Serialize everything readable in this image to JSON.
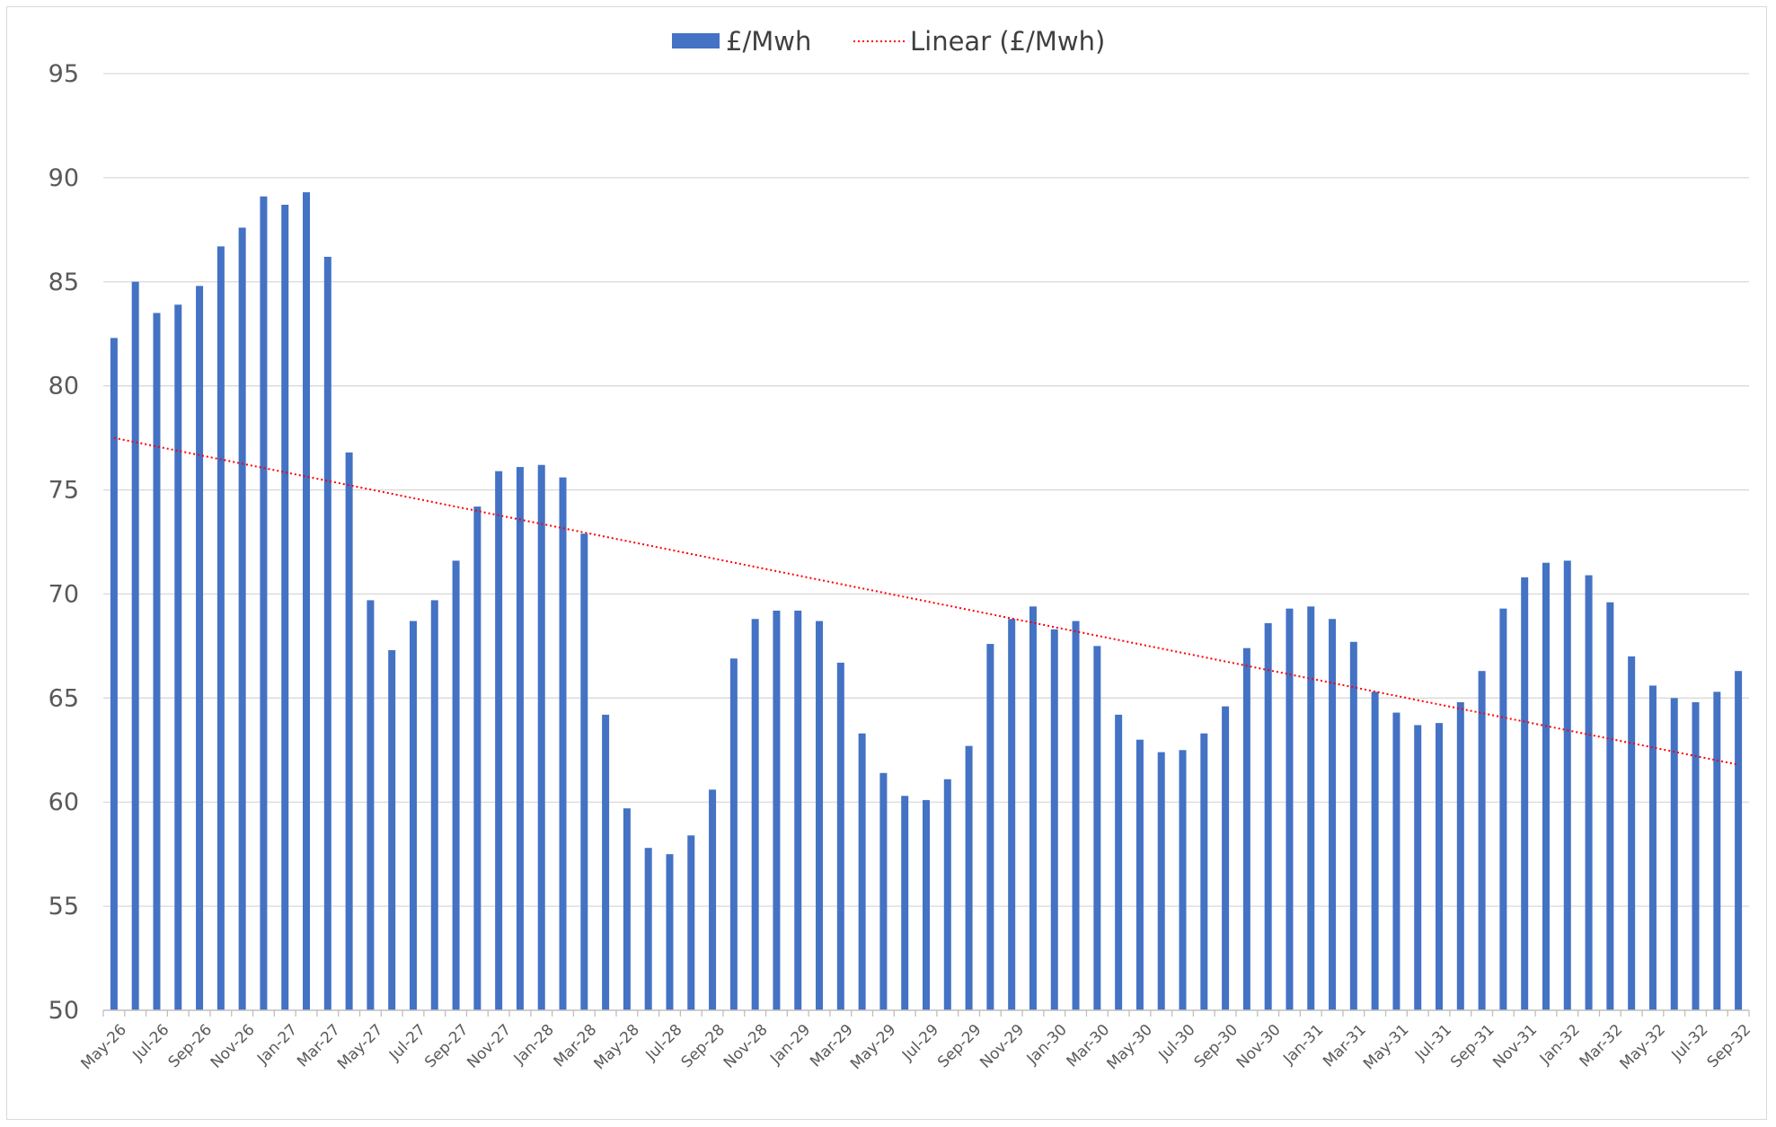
{
  "chart_data": {
    "type": "bar",
    "categories": [
      "May-26",
      "Jun-26",
      "Jul-26",
      "Aug-26",
      "Sep-26",
      "Oct-26",
      "Nov-26",
      "Dec-26",
      "Jan-27",
      "Feb-27",
      "Mar-27",
      "Apr-27",
      "May-27",
      "Jun-27",
      "Jul-27",
      "Aug-27",
      "Sep-27",
      "Oct-27",
      "Nov-27",
      "Dec-27",
      "Jan-28",
      "Feb-28",
      "Mar-28",
      "Apr-28",
      "May-28",
      "Jun-28",
      "Jul-28",
      "Aug-28",
      "Sep-28",
      "Oct-28",
      "Nov-28",
      "Dec-28",
      "Jan-29",
      "Feb-29",
      "Mar-29",
      "Apr-29",
      "May-29",
      "Jun-29",
      "Jul-29",
      "Aug-29",
      "Sep-29",
      "Oct-29",
      "Nov-29",
      "Dec-29",
      "Jan-30",
      "Feb-30",
      "Mar-30",
      "Apr-30",
      "May-30",
      "Jun-30",
      "Jul-30",
      "Aug-30",
      "Sep-30",
      "Oct-30",
      "Nov-30",
      "Dec-30",
      "Jan-31",
      "Feb-31",
      "Mar-31",
      "Apr-31",
      "May-31",
      "Jun-31",
      "Jul-31",
      "Aug-31",
      "Sep-31",
      "Oct-31",
      "Nov-31",
      "Dec-31",
      "Jan-32",
      "Feb-32",
      "Mar-32",
      "Apr-32",
      "May-32",
      "Jun-32",
      "Jul-32",
      "Aug-32",
      "Sep-32"
    ],
    "series": [
      {
        "name": "£/Mwh",
        "color": "#4472c4",
        "values": [
          82.3,
          85.0,
          83.5,
          83.9,
          84.8,
          86.7,
          87.6,
          89.1,
          88.7,
          89.3,
          86.2,
          76.8,
          69.7,
          67.3,
          68.7,
          69.7,
          71.6,
          74.2,
          75.9,
          76.1,
          76.2,
          75.6,
          72.9,
          64.2,
          59.7,
          57.8,
          57.5,
          58.4,
          60.6,
          66.9,
          68.8,
          69.2,
          69.2,
          68.7,
          66.7,
          63.3,
          61.4,
          60.3,
          60.1,
          61.1,
          62.7,
          67.6,
          68.8,
          69.4,
          68.3,
          68.7,
          67.5,
          64.2,
          63.0,
          62.4,
          62.5,
          63.3,
          64.6,
          67.4,
          68.6,
          69.3,
          69.4,
          68.8,
          67.7,
          65.3,
          64.3,
          63.7,
          63.8,
          64.8,
          66.3,
          69.3,
          70.8,
          71.5,
          71.6,
          70.9,
          69.6,
          67.0,
          65.6,
          65.0,
          64.8,
          65.3,
          66.3
        ]
      }
    ],
    "trendline": {
      "name": "Linear (£/Mwh)",
      "color": "#ff0000",
      "start": 77.5,
      "end": 61.8
    },
    "xtick_labels": [
      "May-26",
      "Jul-26",
      "Sep-26",
      "Nov-26",
      "Jan-27",
      "Mar-27",
      "May-27",
      "Jul-27",
      "Sep-27",
      "Nov-27",
      "Jan-28",
      "Mar-28",
      "May-28",
      "Jul-28",
      "Sep-28",
      "Nov-28",
      "Jan-29",
      "Mar-29",
      "May-29",
      "Jul-29",
      "Sep-29",
      "Nov-29",
      "Jan-30",
      "Mar-30",
      "May-30",
      "Jul-30",
      "Sep-30",
      "Nov-30",
      "Jan-31",
      "Mar-31",
      "May-31",
      "Jul-31",
      "Sep-31",
      "Nov-31",
      "Jan-32",
      "Mar-32",
      "May-32",
      "Jul-32",
      "Sep-32"
    ],
    "yticks": [
      50,
      55,
      60,
      65,
      70,
      75,
      80,
      85,
      90,
      95
    ],
    "ylim": [
      50,
      95
    ],
    "grid": true,
    "legend_position": "top-center",
    "title": "",
    "xlabel": "",
    "ylabel": ""
  }
}
